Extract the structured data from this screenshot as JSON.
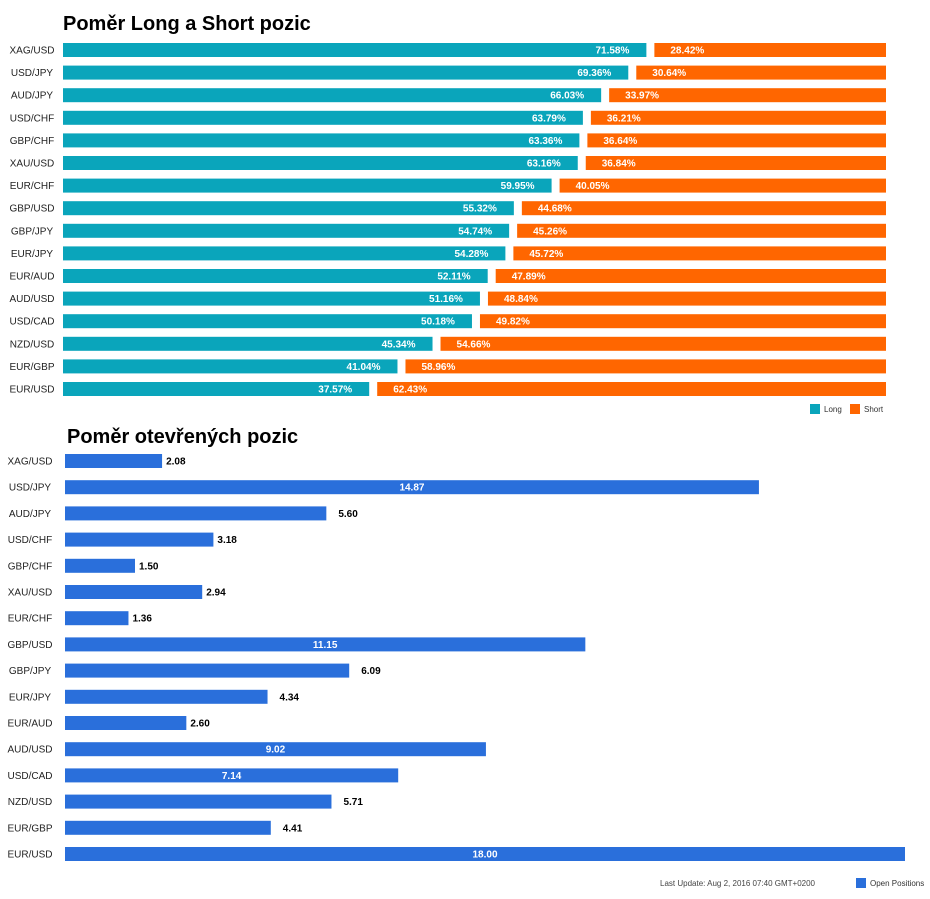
{
  "colors": {
    "long": "#0AA5BB",
    "short": "#FF6600",
    "open": "#2A6FDB"
  },
  "chart_data": [
    {
      "type": "bar",
      "orientation": "horizontal",
      "stacked": true,
      "title": "Poměr Long a Short pozic",
      "categories": [
        "XAG/USD",
        "USD/JPY",
        "AUD/JPY",
        "USD/CHF",
        "GBP/CHF",
        "XAU/USD",
        "EUR/CHF",
        "GBP/USD",
        "GBP/JPY",
        "EUR/JPY",
        "EUR/AUD",
        "AUD/USD",
        "USD/CAD",
        "NZD/USD",
        "EUR/GBP",
        "EUR/USD"
      ],
      "series": [
        {
          "name": "Long",
          "values": [
            71.58,
            69.36,
            66.03,
            63.79,
            63.36,
            63.16,
            59.95,
            55.32,
            54.74,
            54.28,
            52.11,
            51.16,
            50.18,
            45.34,
            41.04,
            37.57
          ],
          "labels": [
            "71.58%",
            "69.36%",
            "66.03%",
            "63.79%",
            "63.36%",
            "63.16%",
            "59.95%",
            "55.32%",
            "54.74%",
            "54.28%",
            "52.11%",
            "51.16%",
            "50.18%",
            "45.34%",
            "41.04%",
            "37.57%"
          ]
        },
        {
          "name": "Short",
          "values": [
            28.42,
            30.64,
            33.97,
            36.21,
            36.64,
            36.84,
            40.05,
            44.68,
            45.26,
            45.72,
            47.89,
            48.84,
            49.82,
            54.66,
            58.96,
            62.43
          ],
          "labels": [
            "28.42%",
            "30.64%",
            "33.97%",
            "36.21%",
            "36.64%",
            "36.84%",
            "40.05%",
            "44.68%",
            "45.26%",
            "45.72%",
            "47.89%",
            "48.84%",
            "49.82%",
            "54.66%",
            "58.96%",
            "62.43%"
          ]
        }
      ],
      "xlim": [
        0,
        100
      ],
      "legend": "bottom-right"
    },
    {
      "type": "bar",
      "orientation": "horizontal",
      "title": "Poměr otevřených pozic",
      "categories": [
        "XAG/USD",
        "USD/JPY",
        "AUD/JPY",
        "USD/CHF",
        "GBP/CHF",
        "XAU/USD",
        "EUR/CHF",
        "GBP/USD",
        "GBP/JPY",
        "EUR/JPY",
        "EUR/AUD",
        "AUD/USD",
        "USD/CAD",
        "NZD/USD",
        "EUR/GBP",
        "EUR/USD"
      ],
      "series": [
        {
          "name": "Open Positions",
          "values": [
            2.08,
            14.87,
            5.6,
            3.18,
            1.5,
            2.94,
            1.36,
            11.15,
            6.09,
            4.34,
            2.6,
            9.02,
            7.14,
            5.71,
            4.41,
            18.0
          ],
          "labels": [
            "2.08",
            "14.87",
            "5.60",
            "3.18",
            "1.50",
            "2.94",
            "1.36",
            "11.15",
            "6.09",
            "4.34",
            "2.60",
            "9.02",
            "7.14",
            "5.71",
            "4.41",
            "18.00"
          ]
        }
      ],
      "xlim": [
        0,
        18
      ],
      "legend": "bottom-right"
    }
  ],
  "footer": {
    "last_update": "Last Update: Aug 2, 2016 07:40 GMT+0200"
  }
}
